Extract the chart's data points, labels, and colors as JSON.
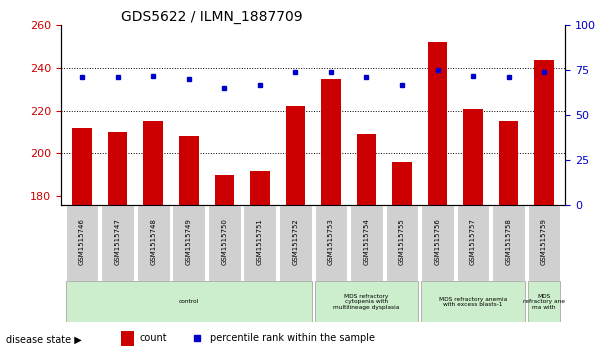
{
  "title": "GDS5622 / ILMN_1887709",
  "samples": [
    "GSM1515746",
    "GSM1515747",
    "GSM1515748",
    "GSM1515749",
    "GSM1515750",
    "GSM1515751",
    "GSM1515752",
    "GSM1515753",
    "GSM1515754",
    "GSM1515755",
    "GSM1515756",
    "GSM1515757",
    "GSM1515758",
    "GSM1515759"
  ],
  "counts": [
    212,
    210,
    215,
    208,
    190,
    192,
    222,
    235,
    209,
    196,
    252,
    221,
    215,
    244
  ],
  "percentiles": [
    71,
    71,
    72,
    70,
    65,
    67,
    74,
    74,
    71,
    67,
    75,
    72,
    71,
    74
  ],
  "ylim_left": [
    176,
    260
  ],
  "ylim_right": [
    0,
    100
  ],
  "yticks_left": [
    180,
    200,
    220,
    240,
    260
  ],
  "yticks_right": [
    0,
    25,
    50,
    75,
    100
  ],
  "bar_color": "#cc0000",
  "dot_color": "#0000cc",
  "disease_groups": [
    {
      "label": "control",
      "start": 0,
      "end": 7
    },
    {
      "label": "MDS refractory\ncytopenia with\nmultilineage dysplasia",
      "start": 7,
      "end": 10
    },
    {
      "label": "MDS refractory anemia\nwith excess blasts-1",
      "start": 10,
      "end": 13
    },
    {
      "label": "MDS\nrefractory ane\nma with",
      "start": 13,
      "end": 14
    }
  ],
  "group_color": "#cceecc",
  "sample_box_color": "#d0d0d0",
  "legend_count_label": "count",
  "legend_percentile_label": "percentile rank within the sample",
  "disease_state_label": "disease state"
}
